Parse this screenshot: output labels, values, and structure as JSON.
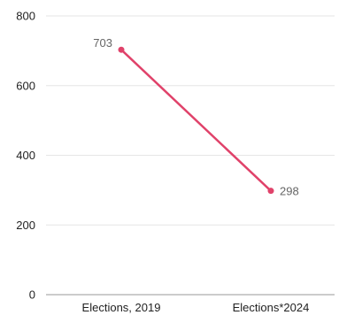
{
  "chart_data": {
    "type": "line",
    "categories": [
      "Elections, 2019",
      "Elections*2024"
    ],
    "series": [
      {
        "values": [
          703,
          298
        ],
        "color": "#e0426a"
      }
    ],
    "data_labels": [
      "703",
      "298"
    ],
    "ylim": [
      0,
      800
    ],
    "yticks": [
      0,
      200,
      400,
      600,
      800
    ],
    "ytick_labels": [
      "0",
      "200",
      "400",
      "600",
      "800"
    ],
    "grid": true,
    "legend": "none",
    "title": "",
    "xlabel": "",
    "ylabel": ""
  }
}
